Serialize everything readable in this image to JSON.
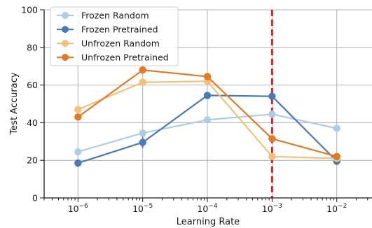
{
  "chart_data": {
    "type": "line",
    "title": "",
    "xlabel": "Learning Rate",
    "ylabel": "Test Accuracy",
    "x_scale": "log",
    "x": [
      1e-06,
      1e-05,
      0.0001,
      0.001,
      0.01
    ],
    "xtick_labels": [
      {
        "base": "10",
        "exp": "−6"
      },
      {
        "base": "10",
        "exp": "−5"
      },
      {
        "base": "10",
        "exp": "−4"
      },
      {
        "base": "10",
        "exp": "−3"
      },
      {
        "base": "10",
        "exp": "−2"
      }
    ],
    "xlim": [
      3e-07,
      0.035
    ],
    "ylim": [
      0,
      100
    ],
    "yticks": [
      0,
      20,
      40,
      60,
      80,
      100
    ],
    "grid": true,
    "legend_position": "top-left",
    "reference_line": {
      "x": 0.001,
      "style": "dashed",
      "color": "#d62728"
    },
    "series": [
      {
        "name": "Frozen Random",
        "color": "#aecde4",
        "values": [
          24.5,
          34.5,
          41.5,
          44.5,
          37
        ],
        "errors": [
          1.0,
          1.5,
          1.0,
          2.0,
          1.0
        ]
      },
      {
        "name": "Frozen Pretrained",
        "color": "#4a79b4",
        "values": [
          18.5,
          29.5,
          54.5,
          54,
          19.5
        ],
        "errors": [
          2.0,
          3.0,
          1.0,
          1.5,
          1.5
        ]
      },
      {
        "name": "Unfrozen Random",
        "color": "#f3c07c",
        "values": [
          47,
          61.5,
          62,
          22,
          21
        ],
        "errors": [
          1.0,
          1.5,
          1.5,
          1.0,
          1.0
        ]
      },
      {
        "name": "Unfrozen Pretrained",
        "color": "#e07a28",
        "values": [
          43,
          68,
          64.5,
          31.5,
          22
        ],
        "errors": [
          1.5,
          1.5,
          1.5,
          1.5,
          1.5
        ]
      }
    ]
  }
}
